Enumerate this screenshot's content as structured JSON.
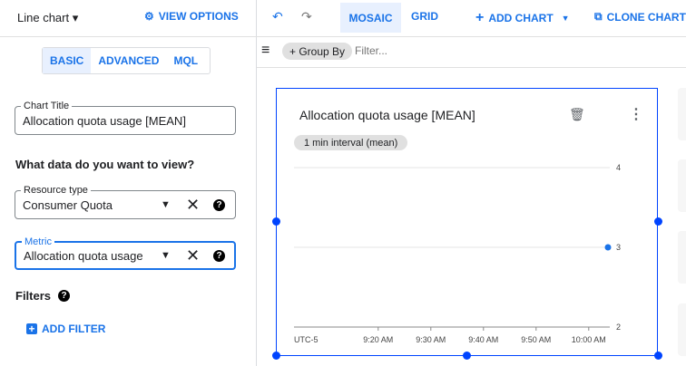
{
  "left_panel": {
    "chart_type": "Line chart",
    "view_options": "VIEW OPTIONS",
    "tabs": [
      "BASIC",
      "ADVANCED",
      "MQL"
    ],
    "active_tab": "BASIC",
    "chart_title_label": "Chart Title",
    "chart_title_value": "Allocation quota usage [MEAN]",
    "section_heading": "What data do you want to view?",
    "resource_type_label": "Resource type",
    "resource_type_value": "Consumer Quota",
    "metric_label": "Metric",
    "metric_value": "Allocation quota usage",
    "filters_label": "Filters",
    "add_filter": "ADD FILTER"
  },
  "toolbar": {
    "mosaic": "MOSAIC",
    "grid": "GRID",
    "add_chart": "ADD CHART",
    "clone_chart": "CLONE CHART",
    "active": "MOSAIC"
  },
  "filter_bar": {
    "group_by": "+ Group By",
    "filter_placeholder": "Filter..."
  },
  "chart_card": {
    "title": "Allocation quota usage [MEAN]",
    "interval_chip": "1 min interval (mean)"
  },
  "colors": {
    "accent": "#1a73e8",
    "selection": "#0044ff",
    "series": "#1a73e8"
  },
  "chart_data": {
    "type": "line",
    "xlabel": "UTC-5",
    "x_ticks": [
      "9:20 AM",
      "9:30 AM",
      "9:40 AM",
      "9:50 AM",
      "10:00 AM"
    ],
    "y_ticks": [
      "2",
      "3",
      "4"
    ],
    "ylim": [
      2,
      4
    ],
    "xlim": [
      "9:04 AM",
      "10:04 AM"
    ],
    "grid": true,
    "series": [
      {
        "points": [
          {
            "x": "10:04 AM",
            "y": 3
          }
        ]
      }
    ]
  }
}
